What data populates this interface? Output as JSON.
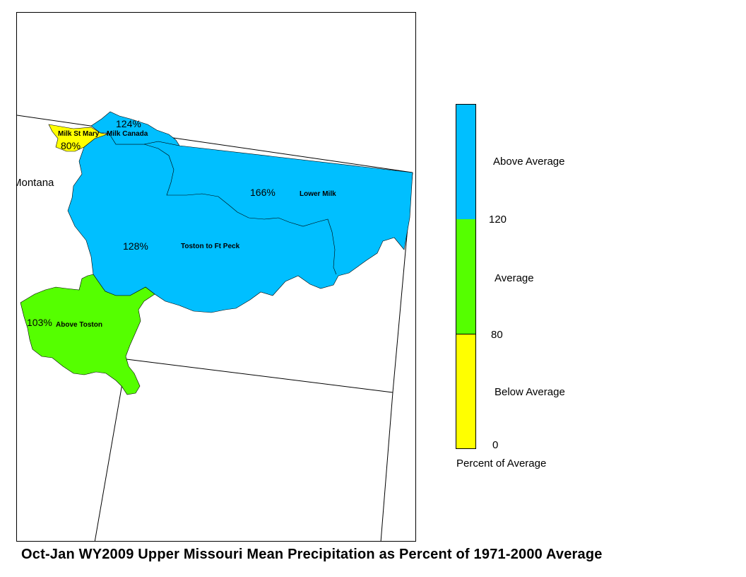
{
  "title": "Oct-Jan WY2009 Upper Missouri Mean Precipitation as Percent of 1971-2000 Average",
  "state_label": "Montana",
  "colors": {
    "above": "#00bfff",
    "average": "#55ff00",
    "below": "#ffff00"
  },
  "basins": [
    {
      "name": "Milk St Mary",
      "percent": "80%",
      "category": "below"
    },
    {
      "name": "Milk Canada",
      "percent": "124%",
      "category": "above"
    },
    {
      "name": "Lower Milk",
      "percent": "166%",
      "category": "above"
    },
    {
      "name": "Toston to Ft Peck",
      "percent": "128%",
      "category": "above"
    },
    {
      "name": "Above Toston",
      "percent": "103%",
      "category": "average"
    }
  ],
  "legend": {
    "title": "Percent of Average",
    "classes": [
      {
        "label": "Above Average",
        "color": "#00bfff"
      },
      {
        "label": "Average",
        "color": "#55ff00"
      },
      {
        "label": "Below Average",
        "color": "#ffff00"
      }
    ],
    "breaks": [
      "120",
      "80",
      "0"
    ]
  }
}
